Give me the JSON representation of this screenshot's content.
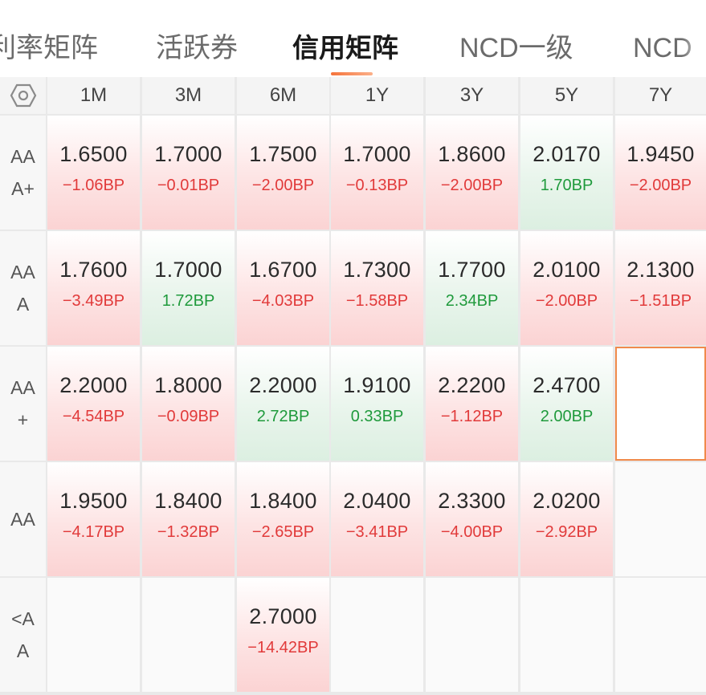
{
  "tabs": [
    {
      "label": "利率矩阵",
      "active": false
    },
    {
      "label": "活跃券",
      "active": false
    },
    {
      "label": "信用矩阵",
      "active": true
    },
    {
      "label": "NCD一级",
      "active": false
    },
    {
      "label": "NCD",
      "active": false
    }
  ],
  "matrix": {
    "settings_icon": "hexagon-settings-icon",
    "columns": [
      "1M",
      "3M",
      "6M",
      "1Y",
      "3Y",
      "5Y",
      "7Y"
    ],
    "rows": [
      {
        "label": "AA\nA+",
        "cells": [
          {
            "value": "1.6500",
            "change": "−1.06BP",
            "trend": "red"
          },
          {
            "value": "1.7000",
            "change": "−0.01BP",
            "trend": "red"
          },
          {
            "value": "1.7500",
            "change": "−2.00BP",
            "trend": "red"
          },
          {
            "value": "1.7000",
            "change": "−0.13BP",
            "trend": "red"
          },
          {
            "value": "1.8600",
            "change": "−2.00BP",
            "trend": "red"
          },
          {
            "value": "2.0170",
            "change": "1.70BP",
            "trend": "green"
          },
          {
            "value": "1.9450",
            "change": "−2.00BP",
            "trend": "red"
          }
        ]
      },
      {
        "label": "AA\nA",
        "cells": [
          {
            "value": "1.7600",
            "change": "−3.49BP",
            "trend": "red"
          },
          {
            "value": "1.7000",
            "change": "1.72BP",
            "trend": "green"
          },
          {
            "value": "1.6700",
            "change": "−4.03BP",
            "trend": "red"
          },
          {
            "value": "1.7300",
            "change": "−1.58BP",
            "trend": "red"
          },
          {
            "value": "1.7700",
            "change": "2.34BP",
            "trend": "green"
          },
          {
            "value": "2.0100",
            "change": "−2.00BP",
            "trend": "red"
          },
          {
            "value": "2.1300",
            "change": "−1.51BP",
            "trend": "red"
          }
        ]
      },
      {
        "label": "AA\n+",
        "cells": [
          {
            "value": "2.2000",
            "change": "−4.54BP",
            "trend": "red"
          },
          {
            "value": "1.8000",
            "change": "−0.09BP",
            "trend": "red"
          },
          {
            "value": "2.2000",
            "change": "2.72BP",
            "trend": "green"
          },
          {
            "value": "1.9100",
            "change": "0.33BP",
            "trend": "green"
          },
          {
            "value": "2.2200",
            "change": "−1.12BP",
            "trend": "red"
          },
          {
            "value": "2.4700",
            "change": "2.00BP",
            "trend": "green"
          },
          {
            "value": "",
            "change": "",
            "trend": "selected"
          }
        ]
      },
      {
        "label": "AA",
        "cells": [
          {
            "value": "1.9500",
            "change": "−4.17BP",
            "trend": "red"
          },
          {
            "value": "1.8400",
            "change": "−1.32BP",
            "trend": "red"
          },
          {
            "value": "1.8400",
            "change": "−2.65BP",
            "trend": "red"
          },
          {
            "value": "2.0400",
            "change": "−3.41BP",
            "trend": "red"
          },
          {
            "value": "2.3300",
            "change": "−4.00BP",
            "trend": "red"
          },
          {
            "value": "2.0200",
            "change": "−2.92BP",
            "trend": "red"
          },
          {
            "value": "",
            "change": "",
            "trend": "empty"
          }
        ]
      },
      {
        "label": "<A\nA",
        "cells": [
          {
            "value": "",
            "change": "",
            "trend": "empty"
          },
          {
            "value": "",
            "change": "",
            "trend": "empty"
          },
          {
            "value": "2.7000",
            "change": "−14.42BP",
            "trend": "red"
          },
          {
            "value": "",
            "change": "",
            "trend": "empty"
          },
          {
            "value": "",
            "change": "",
            "trend": "empty"
          },
          {
            "value": "",
            "change": "",
            "trend": "empty"
          },
          {
            "value": "",
            "change": "",
            "trend": "empty"
          }
        ]
      }
    ]
  },
  "colors": {
    "accent": "#f5733a",
    "negative": "#e13a3a",
    "positive": "#1f9a3c"
  }
}
